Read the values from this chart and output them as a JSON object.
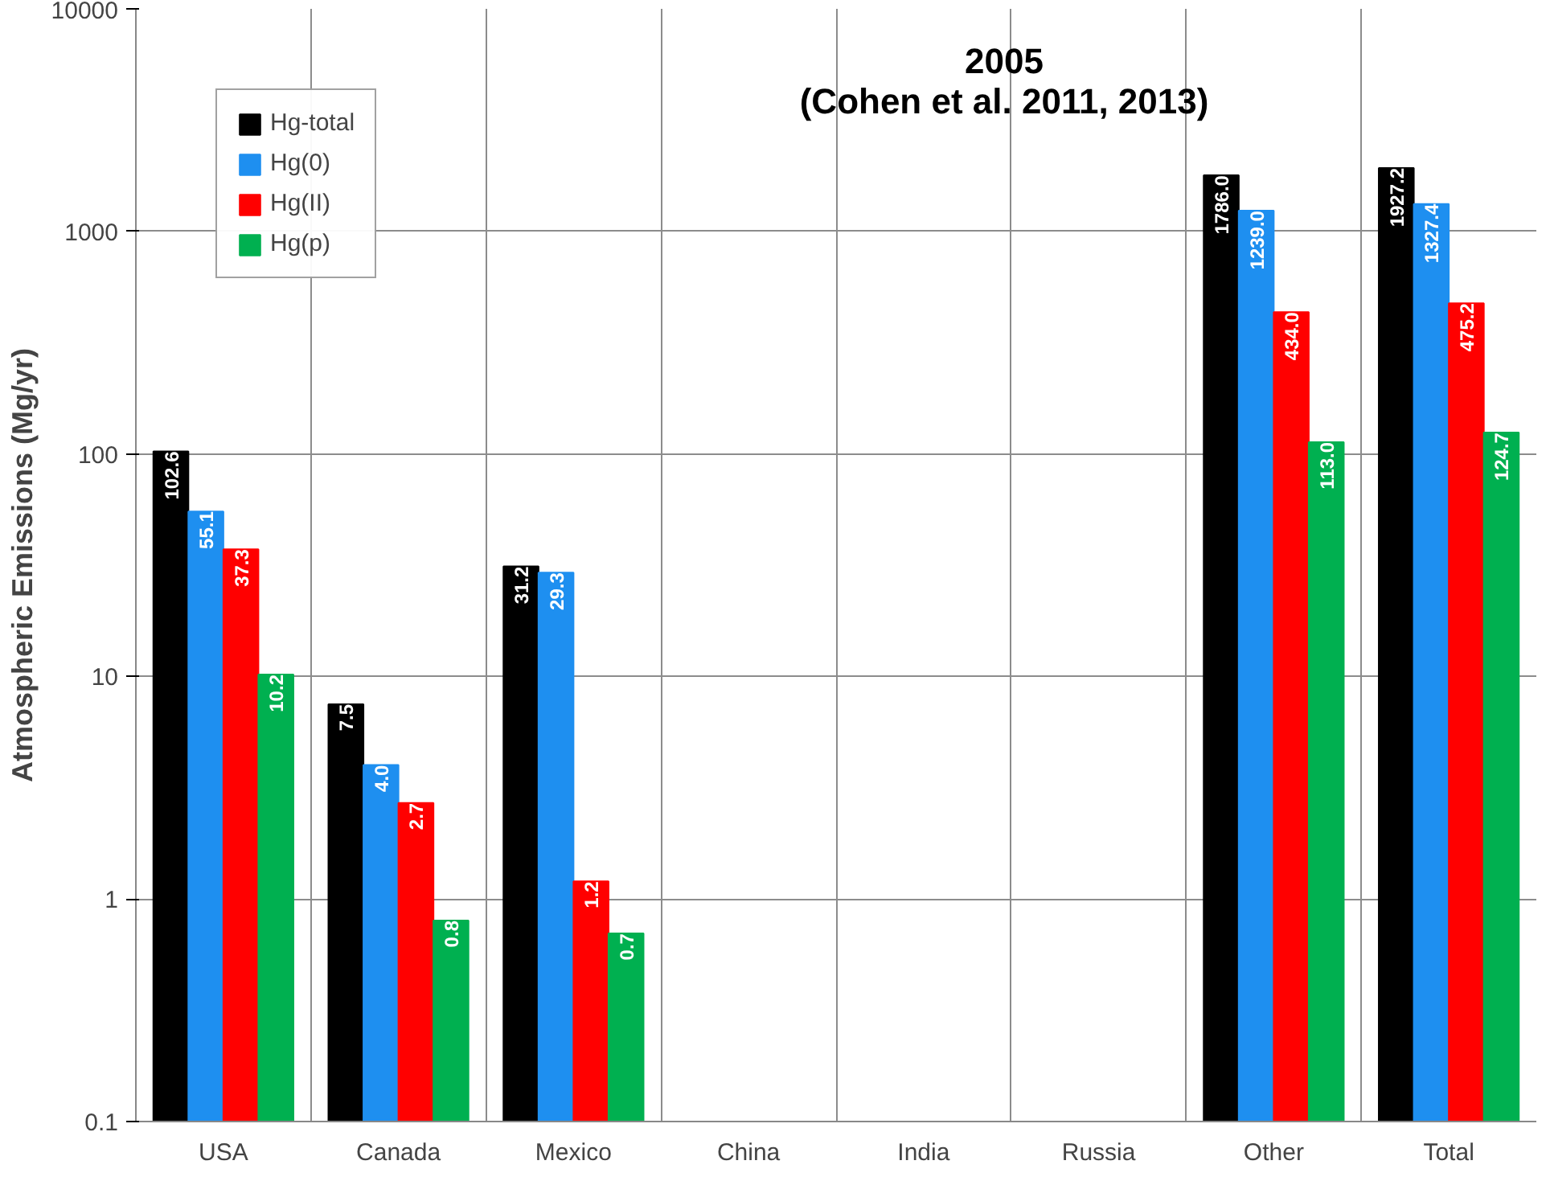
{
  "chart_data": {
    "type": "bar",
    "title": "2005",
    "subtitle": "(Cohen et al. 2011, 2013)",
    "ylabel": "Atmospheric Emissions (Mg/yr)",
    "categories": [
      "USA",
      "Canada",
      "Mexico",
      "China",
      "India",
      "Russia",
      "Other",
      "Total"
    ],
    "log": "y",
    "ylim": [
      0.1,
      10000
    ],
    "yticks": [
      0.1,
      1,
      10,
      100,
      1000,
      10000
    ],
    "grid": true,
    "legend": "top left",
    "series": [
      {
        "name": "Hg-total",
        "color": "#000000",
        "values": [
          102.6,
          7.5,
          31.2,
          null,
          null,
          null,
          1786.0,
          1927.2
        ],
        "value_labels": [
          "102.6",
          "7.5",
          "31.2",
          null,
          null,
          null,
          "1786.0",
          "1927.2"
        ]
      },
      {
        "name": "Hg(0)",
        "color": "#1e8ff0",
        "values": [
          55.1,
          4.0,
          29.3,
          null,
          null,
          null,
          1239.0,
          1327.4
        ],
        "value_labels": [
          "55.1",
          "4.0",
          "29.3",
          null,
          null,
          null,
          "1239.0",
          "1327.4"
        ]
      },
      {
        "name": "Hg(II)",
        "color": "#ff0000",
        "values": [
          37.3,
          2.7,
          1.2,
          null,
          null,
          null,
          434.0,
          475.2
        ],
        "value_labels": [
          "37.3",
          "2.7",
          "1.2",
          null,
          null,
          null,
          "434.0",
          "475.2"
        ]
      },
      {
        "name": "Hg(p)",
        "color": "#00b050",
        "values": [
          10.2,
          0.8,
          0.7,
          null,
          null,
          null,
          113.0,
          124.7
        ],
        "value_labels": [
          "10.2",
          "0.8",
          "0.7",
          null,
          null,
          null,
          "113.0",
          "124.7"
        ]
      }
    ]
  }
}
